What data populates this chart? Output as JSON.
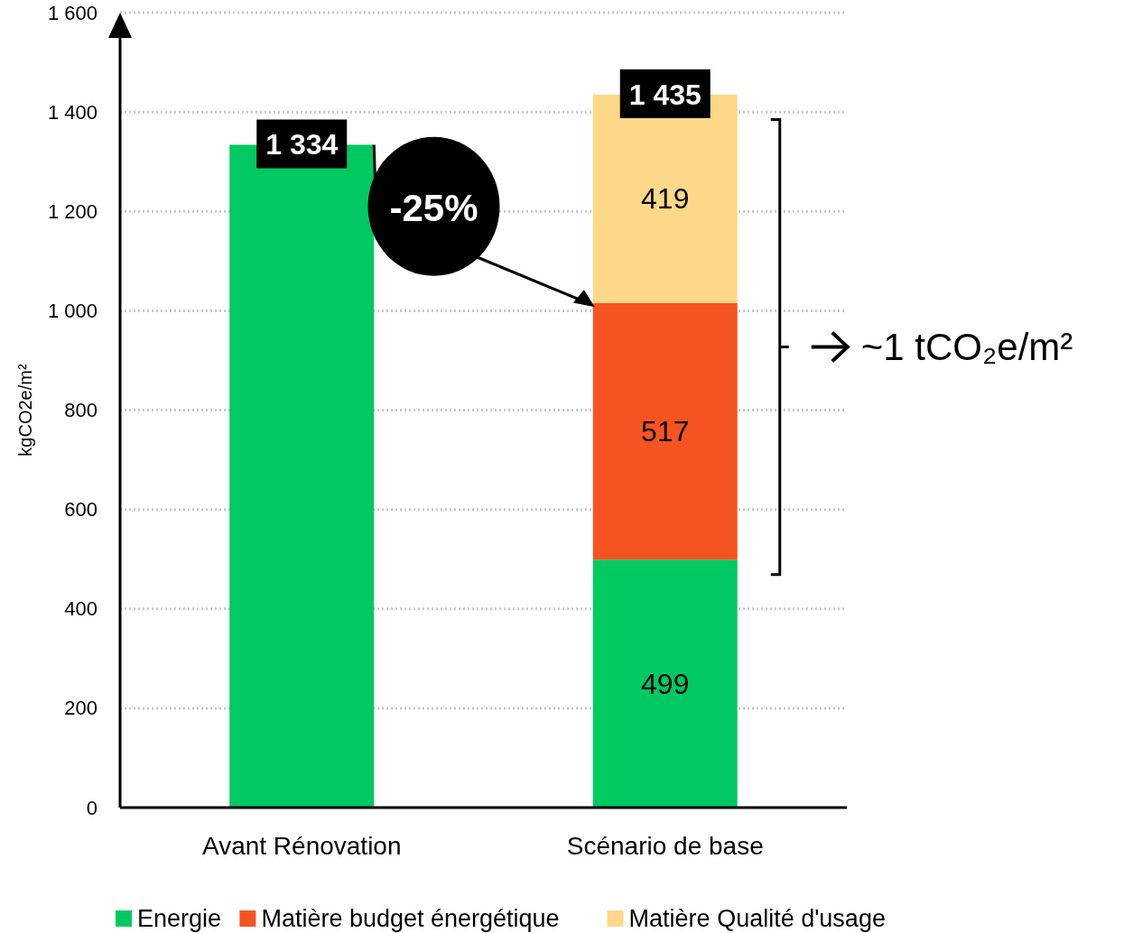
{
  "chart_data": {
    "type": "bar",
    "stacked": true,
    "ylabel": "kgCO2e/m²",
    "categories": [
      "Avant Rénovation",
      "Scénario de base"
    ],
    "series": [
      {
        "name": "Energie",
        "color": "#00c962",
        "values": [
          1334,
          499
        ],
        "value_labels": [
          null,
          "499"
        ]
      },
      {
        "name": "Matière budget énergétique",
        "color": "#f55420",
        "values": [
          null,
          517
        ],
        "value_labels": [
          null,
          "517"
        ]
      },
      {
        "name": "Matière Qualité d'usage",
        "color": "#fdd888",
        "values": [
          null,
          419
        ],
        "value_labels": [
          null,
          "419"
        ]
      }
    ],
    "totals": [
      "1 334",
      "1 435"
    ],
    "ylim": [
      0,
      1600
    ],
    "yticks": [
      0,
      200,
      400,
      600,
      800,
      {
        "value": 1000,
        "label": "1 000"
      },
      {
        "value": 1200,
        "label": "1 200"
      },
      {
        "value": 1400,
        "label": "1 400"
      },
      {
        "value": 1600,
        "label": "1 600"
      }
    ],
    "grid": "y",
    "legend": "bottom",
    "annotations": [
      "-25%",
      "~1 tCO₂e/m²"
    ]
  }
}
